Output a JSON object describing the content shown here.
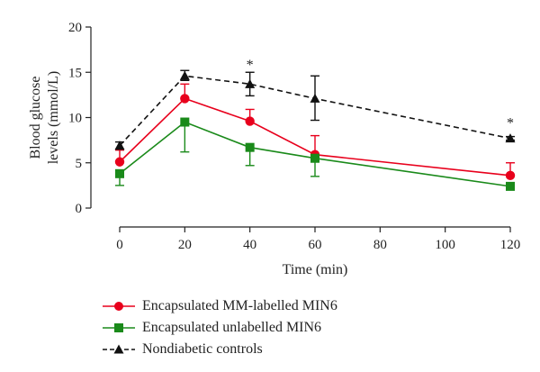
{
  "chart_data": {
    "type": "line",
    "xlabel": "Time (min)",
    "ylabel_line1": "Blood glucose",
    "ylabel_line2": "levels (mmol/L)",
    "xlim": [
      0,
      120
    ],
    "ylim": [
      0,
      20
    ],
    "x_ticks": [
      0,
      20,
      40,
      60,
      80,
      100,
      120
    ],
    "y_ticks": [
      0,
      5,
      10,
      15,
      20
    ],
    "grid": false,
    "legend_position": "bottom-left",
    "series": [
      {
        "name": "Encapsulated MM-labelled MIN6",
        "color": "#e8001c",
        "marker": "circle",
        "dashed": false,
        "x": [
          0,
          20,
          40,
          60,
          120
        ],
        "y": [
          5.1,
          12.1,
          9.6,
          5.9,
          3.6
        ],
        "err_lower": [
          0,
          0,
          0,
          0,
          0
        ],
        "err_upper": [
          1.3,
          1.6,
          1.3,
          2.1,
          1.4
        ]
      },
      {
        "name": "Encapsulated unlabelled MIN6",
        "color": "#1a8a1a",
        "marker": "square",
        "dashed": false,
        "x": [
          0,
          20,
          40,
          60,
          120
        ],
        "y": [
          3.8,
          9.5,
          6.7,
          5.5,
          2.4
        ],
        "err_lower": [
          1.3,
          3.3,
          2.0,
          2.0,
          0
        ],
        "err_upper": [
          0,
          0,
          0,
          0,
          0
        ]
      },
      {
        "name": "Nondiabetic controls",
        "color": "#111111",
        "marker": "triangle",
        "dashed": true,
        "x": [
          0,
          20,
          40,
          60,
          120
        ],
        "y": [
          6.9,
          14.6,
          13.7,
          12.1,
          7.7
        ],
        "err_lower": [
          0.4,
          0.5,
          1.3,
          2.4,
          0.2
        ],
        "err_upper": [
          0.4,
          0.6,
          1.3,
          2.5,
          0.2
        ]
      }
    ],
    "annotations": [
      {
        "text": "*",
        "x": 40,
        "y": 15.9
      },
      {
        "text": "*",
        "x": 120,
        "y": 9.5
      }
    ]
  }
}
